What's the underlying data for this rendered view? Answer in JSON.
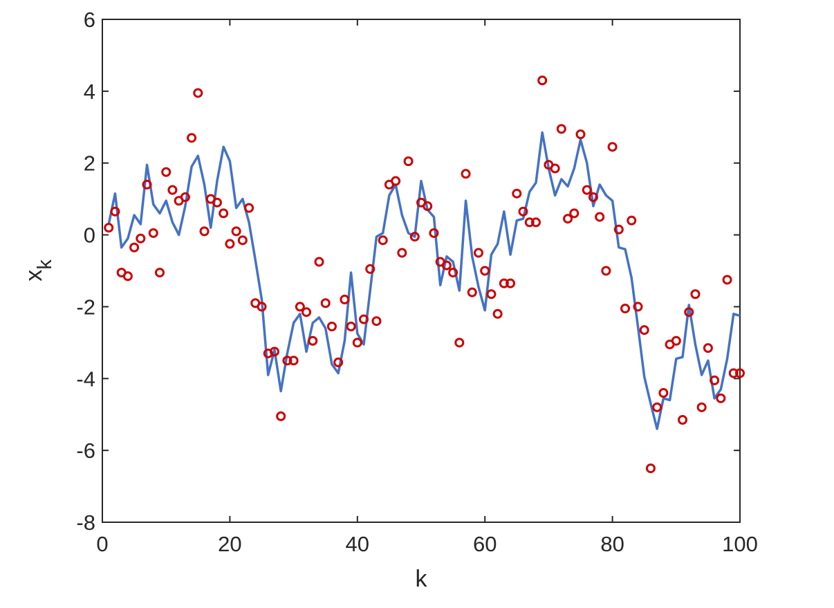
{
  "chart_data": {
    "type": "line",
    "title": "",
    "xlabel": "k",
    "ylabel": "x",
    "ylabel_subscript": "k",
    "xlim": [
      0,
      100
    ],
    "ylim": [
      -8,
      6
    ],
    "xticks": [
      0,
      20,
      40,
      60,
      80,
      100
    ],
    "yticks": [
      -8,
      -6,
      -4,
      -2,
      0,
      2,
      4,
      6
    ],
    "xtick_labels": [
      "0",
      "20",
      "40",
      "60",
      "80",
      "100"
    ],
    "ytick_labels": [
      "-8",
      "-6",
      "-4",
      "-2",
      "0",
      "2",
      "4",
      "6"
    ],
    "grid": false,
    "legend": "none",
    "x": [
      1,
      2,
      3,
      4,
      5,
      6,
      7,
      8,
      9,
      10,
      11,
      12,
      13,
      14,
      15,
      16,
      17,
      18,
      19,
      20,
      21,
      22,
      23,
      24,
      25,
      26,
      27,
      28,
      29,
      30,
      31,
      32,
      33,
      34,
      35,
      36,
      37,
      38,
      39,
      40,
      41,
      42,
      43,
      44,
      45,
      46,
      47,
      48,
      49,
      50,
      51,
      52,
      53,
      54,
      55,
      56,
      57,
      58,
      59,
      60,
      61,
      62,
      63,
      64,
      65,
      66,
      67,
      68,
      69,
      70,
      71,
      72,
      73,
      74,
      75,
      76,
      77,
      78,
      79,
      80,
      81,
      82,
      83,
      84,
      85,
      86,
      87,
      88,
      89,
      90,
      91,
      92,
      93,
      94,
      95,
      96,
      97,
      98,
      99,
      100
    ],
    "series": [
      {
        "style": "line",
        "color": "#4472C4",
        "values": [
          0.3,
          1.15,
          -0.35,
          -0.1,
          0.55,
          0.3,
          1.95,
          0.85,
          0.6,
          0.95,
          0.35,
          0.0,
          0.8,
          1.9,
          2.2,
          1.4,
          0.2,
          1.5,
          2.45,
          2.05,
          0.75,
          1.0,
          0.35,
          -0.7,
          -1.8,
          -3.9,
          -3.2,
          -4.35,
          -3.3,
          -2.45,
          -2.2,
          -3.25,
          -2.45,
          -2.3,
          -2.6,
          -3.6,
          -3.85,
          -2.95,
          -1.05,
          -2.75,
          -3.05,
          -1.55,
          -0.05,
          0.05,
          1.1,
          1.4,
          0.55,
          0.05,
          -0.05,
          1.5,
          0.7,
          0.5,
          -1.4,
          -0.6,
          -0.75,
          -1.55,
          0.95,
          -0.6,
          -1.45,
          -2.1,
          -0.55,
          -0.25,
          0.65,
          -0.55,
          0.4,
          0.45,
          1.2,
          1.45,
          2.85,
          1.85,
          1.1,
          1.55,
          1.35,
          1.85,
          2.65,
          2.0,
          0.8,
          1.4,
          1.1,
          0.95,
          -0.35,
          -0.4,
          -1.2,
          -2.55,
          -3.95,
          -4.7,
          -5.4,
          -4.55,
          -4.6,
          -3.45,
          -3.4,
          -1.95,
          -3.05,
          -3.9,
          -3.5,
          -4.55,
          -4.3,
          -3.45,
          -2.2,
          -2.25
        ]
      },
      {
        "style": "markers",
        "color": "#CC0000",
        "values": [
          0.2,
          0.65,
          -1.05,
          -1.15,
          -0.35,
          -0.1,
          1.4,
          0.05,
          -1.05,
          1.75,
          1.25,
          0.95,
          1.05,
          2.7,
          3.95,
          0.1,
          1.0,
          0.9,
          0.6,
          -0.25,
          0.1,
          -0.15,
          0.75,
          -1.9,
          -2.0,
          -3.3,
          -3.25,
          -5.05,
          -3.5,
          -3.5,
          -2.0,
          -2.15,
          -2.95,
          -0.75,
          -1.9,
          -2.55,
          -3.55,
          -1.8,
          -2.55,
          -3.0,
          -2.35,
          -0.95,
          -2.4,
          -0.15,
          1.4,
          1.5,
          -0.5,
          2.05,
          -0.05,
          0.9,
          0.8,
          0.05,
          -0.75,
          -0.85,
          -1.05,
          -3.0,
          1.7,
          -1.6,
          -0.5,
          -1.0,
          -1.65,
          -2.2,
          -1.35,
          -1.35,
          1.15,
          0.65,
          0.35,
          0.35,
          4.3,
          1.95,
          1.85,
          2.95,
          0.45,
          0.6,
          2.8,
          1.25,
          1.05,
          0.5,
          -1.0,
          2.45,
          0.15,
          -2.05,
          0.4,
          -2.0,
          -2.65,
          -6.5,
          -4.8,
          -4.4,
          -3.05,
          -2.95,
          -5.15,
          -2.15,
          -1.65,
          -4.8,
          -3.15,
          -4.05,
          -4.55,
          -1.25,
          -3.85,
          -3.85
        ]
      }
    ]
  }
}
